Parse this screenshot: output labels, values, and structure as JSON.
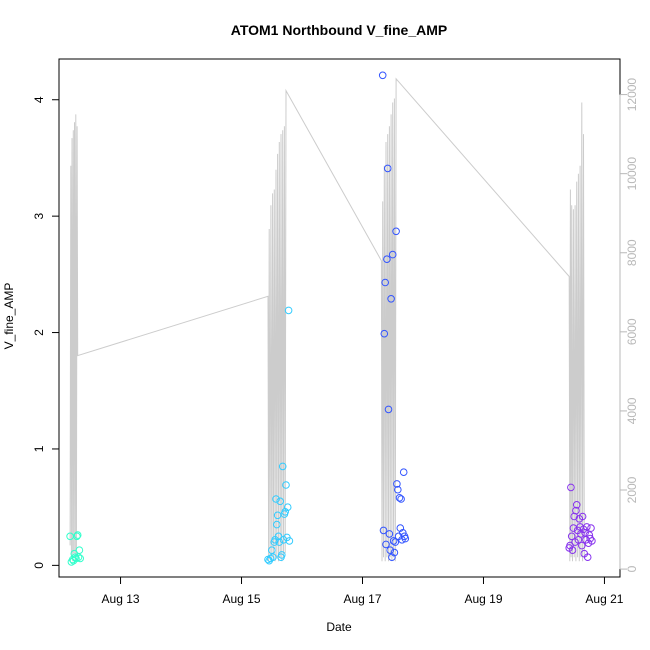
{
  "chart_data": {
    "type": "scatter",
    "title": "ATOM1 Northbound V_fine_AMP",
    "xlabel": "Date",
    "ylabel": "V_fine_AMP",
    "xlim": [
      "2023-08-11T23:35",
      "2023-08-21T06:10"
    ],
    "x_ticks": [
      {
        "date": "2023-08-13",
        "label": "Aug 13"
      },
      {
        "date": "2023-08-15",
        "label": "Aug 15"
      },
      {
        "date": "2023-08-17",
        "label": "Aug 17"
      },
      {
        "date": "2023-08-19",
        "label": "Aug 19"
      },
      {
        "date": "2023-08-21",
        "label": "Aug 21"
      }
    ],
    "ylim": [
      -0.1,
      4.35
    ],
    "y_ticks": [
      "0",
      "1",
      "2",
      "3",
      "4"
    ],
    "y2lim": [
      -200,
      12900
    ],
    "y2_ticks": [
      "0",
      "2000",
      "4000",
      "6000",
      "8000",
      "10000",
      "12000"
    ],
    "grid": false,
    "legend": "none",
    "series": [
      {
        "color": "#33ffcc",
        "points": [
          [
            "2023-08-12T04:00",
            0.25
          ],
          [
            "2023-08-12T04:30",
            0.03
          ],
          [
            "2023-08-12T05:00",
            0.05
          ],
          [
            "2023-08-12T05:20",
            0.04
          ],
          [
            "2023-08-12T05:40",
            0.1
          ],
          [
            "2023-08-12T06:00",
            0.07
          ],
          [
            "2023-08-12T06:20",
            0.06
          ],
          [
            "2023-08-12T06:40",
            0.25
          ],
          [
            "2023-08-12T07:00",
            0.26
          ],
          [
            "2023-08-12T07:20",
            0.07
          ],
          [
            "2023-08-12T07:40",
            0.13
          ],
          [
            "2023-08-12T08:00",
            0.06
          ]
        ]
      },
      {
        "color": "#33ccff",
        "points": [
          [
            "2023-08-15T10:30",
            0.05
          ],
          [
            "2023-08-15T11:00",
            0.04
          ],
          [
            "2023-08-15T11:30",
            0.06
          ],
          [
            "2023-08-15T12:00",
            0.13
          ],
          [
            "2023-08-15T12:30",
            0.07
          ],
          [
            "2023-08-15T13:00",
            0.2
          ],
          [
            "2023-08-15T13:20",
            0.22
          ],
          [
            "2023-08-15T13:40",
            0.57
          ],
          [
            "2023-08-15T14:00",
            0.35
          ],
          [
            "2023-08-15T14:20",
            0.43
          ],
          [
            "2023-08-15T14:40",
            0.25
          ],
          [
            "2023-08-15T15:00",
            0.2
          ],
          [
            "2023-08-15T15:20",
            0.55
          ],
          [
            "2023-08-15T15:40",
            0.07
          ],
          [
            "2023-08-15T16:00",
            0.09
          ],
          [
            "2023-08-15T16:20",
            0.85
          ],
          [
            "2023-08-15T16:40",
            0.22
          ],
          [
            "2023-08-15T17:00",
            0.44
          ],
          [
            "2023-08-15T17:20",
            0.46
          ],
          [
            "2023-08-15T17:40",
            0.69
          ],
          [
            "2023-08-15T18:00",
            0.24
          ],
          [
            "2023-08-15T18:20",
            0.5
          ],
          [
            "2023-08-15T18:40",
            2.19
          ],
          [
            "2023-08-15T19:00",
            0.21
          ]
        ]
      },
      {
        "color": "#3355ff",
        "points": [
          [
            "2023-08-17T08:00",
            4.21
          ],
          [
            "2023-08-17T08:20",
            0.3
          ],
          [
            "2023-08-17T08:40",
            1.99
          ],
          [
            "2023-08-17T09:00",
            2.43
          ],
          [
            "2023-08-17T09:20",
            0.18
          ],
          [
            "2023-08-17T09:40",
            2.63
          ],
          [
            "2023-08-17T10:00",
            3.41
          ],
          [
            "2023-08-17T10:20",
            1.34
          ],
          [
            "2023-08-17T10:40",
            0.27
          ],
          [
            "2023-08-17T11:00",
            0.13
          ],
          [
            "2023-08-17T11:20",
            2.29
          ],
          [
            "2023-08-17T11:40",
            0.07
          ],
          [
            "2023-08-17T12:00",
            2.67
          ],
          [
            "2023-08-17T12:20",
            0.21
          ],
          [
            "2023-08-17T12:40",
            0.11
          ],
          [
            "2023-08-17T13:00",
            0.2
          ],
          [
            "2023-08-17T13:20",
            2.87
          ],
          [
            "2023-08-17T13:40",
            0.7
          ],
          [
            "2023-08-17T14:00",
            0.65
          ],
          [
            "2023-08-17T14:20",
            0.25
          ],
          [
            "2023-08-17T14:40",
            0.58
          ],
          [
            "2023-08-17T15:00",
            0.32
          ],
          [
            "2023-08-17T15:20",
            0.57
          ],
          [
            "2023-08-17T15:40",
            0.22
          ],
          [
            "2023-08-17T16:00",
            0.28
          ],
          [
            "2023-08-17T16:20",
            0.8
          ],
          [
            "2023-08-17T16:40",
            0.25
          ],
          [
            "2023-08-17T17:00",
            0.23
          ]
        ]
      },
      {
        "color": "#8833ee",
        "points": [
          [
            "2023-08-20T10:00",
            0.15
          ],
          [
            "2023-08-20T10:20",
            0.17
          ],
          [
            "2023-08-20T10:40",
            0.67
          ],
          [
            "2023-08-20T11:00",
            0.25
          ],
          [
            "2023-08-20T11:20",
            0.13
          ],
          [
            "2023-08-20T11:40",
            0.32
          ],
          [
            "2023-08-20T12:00",
            0.42
          ],
          [
            "2023-08-20T12:20",
            0.2
          ],
          [
            "2023-08-20T12:40",
            0.47
          ],
          [
            "2023-08-20T13:00",
            0.52
          ],
          [
            "2023-08-20T13:20",
            0.3
          ],
          [
            "2023-08-20T13:40",
            0.22
          ],
          [
            "2023-08-20T14:00",
            0.4
          ],
          [
            "2023-08-20T14:20",
            0.33
          ],
          [
            "2023-08-20T14:40",
            0.27
          ],
          [
            "2023-08-20T15:00",
            0.17
          ],
          [
            "2023-08-20T15:20",
            0.42
          ],
          [
            "2023-08-20T15:40",
            0.31
          ],
          [
            "2023-08-20T16:00",
            0.1
          ],
          [
            "2023-08-20T16:20",
            0.28
          ],
          [
            "2023-08-20T16:40",
            0.22
          ],
          [
            "2023-08-20T17:00",
            0.33
          ],
          [
            "2023-08-20T17:20",
            0.07
          ],
          [
            "2023-08-20T17:40",
            0.19
          ],
          [
            "2023-08-20T18:00",
            0.26
          ],
          [
            "2023-08-20T18:20",
            0.23
          ],
          [
            "2023-08-20T18:40",
            0.32
          ],
          [
            "2023-08-20T19:00",
            0.21
          ]
        ]
      }
    ],
    "line_series": {
      "axis": "right",
      "color": "#cccccc",
      "points": [
        [
          "2023-08-12T04:00",
          600
        ],
        [
          "2023-08-12T04:15",
          10200
        ],
        [
          "2023-08-12T04:30",
          300
        ],
        [
          "2023-08-12T04:45",
          10900
        ],
        [
          "2023-08-12T05:00",
          200
        ],
        [
          "2023-08-12T05:15",
          11100
        ],
        [
          "2023-08-12T05:30",
          400
        ],
        [
          "2023-08-12T05:45",
          11300
        ],
        [
          "2023-08-12T06:00",
          200
        ],
        [
          "2023-08-12T06:15",
          11500
        ],
        [
          "2023-08-12T06:30",
          300
        ],
        [
          "2023-08-12T06:45",
          11200
        ],
        [
          "2023-08-12T07:00",
          5400
        ],
        [
          "2023-08-15T10:30",
          6900
        ],
        [
          "2023-08-15T10:45",
          200
        ],
        [
          "2023-08-15T11:00",
          8600
        ],
        [
          "2023-08-15T11:20",
          300
        ],
        [
          "2023-08-15T11:40",
          9200
        ],
        [
          "2023-08-15T12:00",
          200
        ],
        [
          "2023-08-15T12:20",
          9500
        ],
        [
          "2023-08-15T12:40",
          300
        ],
        [
          "2023-08-15T13:00",
          9600
        ],
        [
          "2023-08-15T13:20",
          200
        ],
        [
          "2023-08-15T13:40",
          10100
        ],
        [
          "2023-08-15T14:00",
          300
        ],
        [
          "2023-08-15T14:20",
          10500
        ],
        [
          "2023-08-15T14:40",
          200
        ],
        [
          "2023-08-15T15:00",
          10800
        ],
        [
          "2023-08-15T15:20",
          300
        ],
        [
          "2023-08-15T15:40",
          11000
        ],
        [
          "2023-08-15T16:00",
          200
        ],
        [
          "2023-08-15T16:20",
          11100
        ],
        [
          "2023-08-15T16:40",
          300
        ],
        [
          "2023-08-15T17:00",
          11200
        ],
        [
          "2023-08-15T17:20",
          400
        ],
        [
          "2023-08-15T17:40",
          12100
        ],
        [
          "2023-08-17T07:30",
          7800
        ],
        [
          "2023-08-17T07:45",
          200
        ],
        [
          "2023-08-17T08:00",
          9300
        ],
        [
          "2023-08-17T08:20",
          300
        ],
        [
          "2023-08-17T08:40",
          10200
        ],
        [
          "2023-08-17T09:00",
          200
        ],
        [
          "2023-08-17T09:20",
          10800
        ],
        [
          "2023-08-17T09:40",
          300
        ],
        [
          "2023-08-17T10:00",
          11000
        ],
        [
          "2023-08-17T10:20",
          200
        ],
        [
          "2023-08-17T10:40",
          11200
        ],
        [
          "2023-08-17T11:00",
          300
        ],
        [
          "2023-08-17T11:20",
          11500
        ],
        [
          "2023-08-17T11:40",
          200
        ],
        [
          "2023-08-17T12:00",
          11800
        ],
        [
          "2023-08-17T12:20",
          300
        ],
        [
          "2023-08-17T12:40",
          11900
        ],
        [
          "2023-08-17T13:00",
          200
        ],
        [
          "2023-08-17T13:20",
          12400
        ],
        [
          "2023-08-20T10:00",
          7400
        ],
        [
          "2023-08-20T10:15",
          200
        ],
        [
          "2023-08-20T10:30",
          9600
        ],
        [
          "2023-08-20T10:45",
          300
        ],
        [
          "2023-08-20T11:00",
          9200
        ],
        [
          "2023-08-20T11:20",
          200
        ],
        [
          "2023-08-20T11:40",
          9100
        ],
        [
          "2023-08-20T12:00",
          300
        ],
        [
          "2023-08-20T12:20",
          9200
        ],
        [
          "2023-08-20T12:40",
          200
        ],
        [
          "2023-08-20T13:00",
          9800
        ],
        [
          "2023-08-20T13:20",
          300
        ],
        [
          "2023-08-20T13:40",
          10000
        ],
        [
          "2023-08-20T14:00",
          200
        ],
        [
          "2023-08-20T14:20",
          10200
        ],
        [
          "2023-08-20T14:40",
          300
        ],
        [
          "2023-08-20T15:00",
          11800
        ],
        [
          "2023-08-20T15:20",
          200
        ],
        [
          "2023-08-20T15:40",
          11000
        ],
        [
          "2023-08-20T16:00",
          300
        ]
      ]
    }
  }
}
